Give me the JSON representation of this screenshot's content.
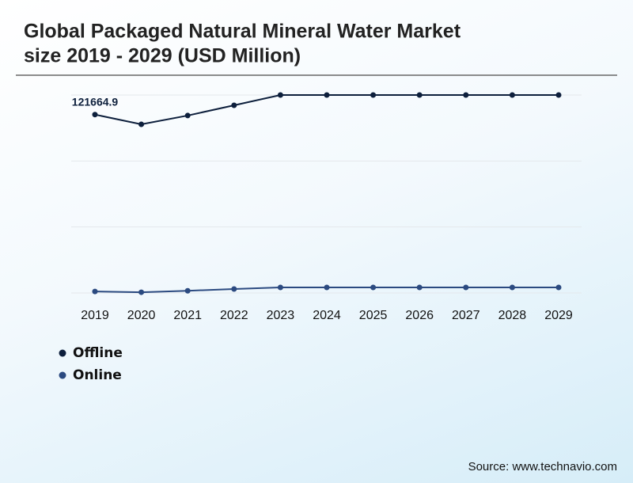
{
  "chart_data": {
    "type": "line",
    "title_lines": [
      "Global Packaged Natural Mineral Water Market",
      "size 2019 - 2029 (USD Million)"
    ],
    "categories": [
      "2019",
      "2020",
      "2021",
      "2022",
      "2023",
      "2024",
      "2025",
      "2026",
      "2027",
      "2028",
      "2029"
    ],
    "series": [
      {
        "name": "Offline",
        "color": "#0d1f3c",
        "values": [
          121664.9,
          115000,
          121000,
          128000,
          135000,
          135000,
          135000,
          135000,
          135000,
          135000,
          135000
        ]
      },
      {
        "name": "Online",
        "color": "#2b4a80",
        "values": [
          1000,
          500,
          1500,
          2700,
          3800,
          3800,
          3800,
          3800,
          3800,
          3800,
          3800
        ]
      }
    ],
    "ylim": [
      0,
      135000
    ],
    "yticks": [
      0,
      45000,
      90000,
      135000
    ],
    "grid": true,
    "source": "Source: www.technavio.com"
  }
}
